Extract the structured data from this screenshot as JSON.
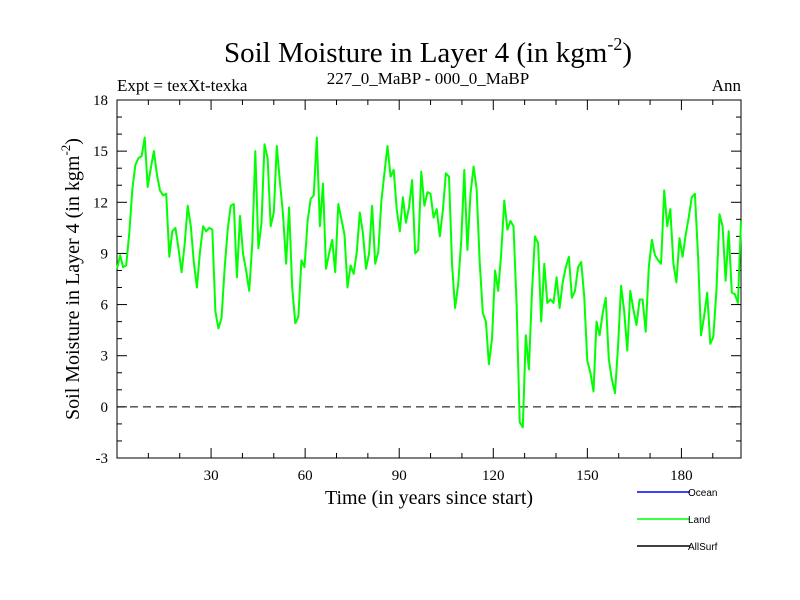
{
  "chart_data": {
    "type": "line",
    "title": "Soil Moisture in Layer 4 (in kgm",
    "title_sup": "-2",
    "title_close": ")",
    "subtitle_left": "Expt = texXt-texka",
    "subtitle_center": "227_0_MaBP - 000_0_MaBP",
    "subtitle_right": "Ann",
    "xlabel": "Time (in years since start)",
    "ylabel": "Soil Moisture in Layer 4 (in kgm",
    "ylabel_sup": "-2",
    "ylabel_close": ")",
    "xlim": [
      0,
      199
    ],
    "ylim": [
      -3,
      18
    ],
    "x_ticks": [
      30,
      60,
      90,
      120,
      150,
      180
    ],
    "y_ticks": [
      -3,
      0,
      3,
      6,
      9,
      12,
      15,
      18
    ],
    "reference_line": 0,
    "legend": [
      {
        "name": "Ocean",
        "color": "#0000ff"
      },
      {
        "name": "Land",
        "color": "#00ff00"
      },
      {
        "name": "AllSurf",
        "color": "#000000"
      }
    ],
    "series": [
      {
        "name": "Land",
        "color": "#00ff00",
        "values": [
          8.1,
          8.9,
          8.2,
          8.3,
          10.2,
          12.8,
          14.2,
          14.6,
          14.7,
          15.8,
          12.9,
          14.0,
          15.0,
          13.6,
          12.7,
          12.4,
          12.5,
          8.8,
          10.3,
          10.5,
          9.3,
          7.9,
          9.5,
          11.8,
          10.6,
          8.5,
          7.0,
          9.1,
          10.6,
          10.3,
          10.5,
          10.4,
          5.6,
          4.6,
          5.2,
          8.1,
          10.4,
          11.8,
          11.9,
          7.6,
          11.2,
          9.0,
          8.0,
          6.8,
          9.6,
          15.0,
          9.3,
          10.8,
          15.4,
          14.6,
          10.6,
          11.4,
          15.3,
          13.2,
          11.3,
          8.4,
          11.7,
          7.0,
          4.9,
          5.3,
          8.6,
          8.2,
          10.9,
          12.2,
          12.4,
          15.8,
          10.6,
          13.1,
          8.1,
          9.0,
          9.8,
          7.9,
          11.9,
          11.0,
          10.1,
          7.0,
          8.3,
          7.8,
          9.1,
          11.4,
          10.2,
          8.1,
          9.0,
          11.8,
          8.4,
          9.1,
          12.1,
          13.7,
          15.3,
          13.5,
          13.9,
          11.6,
          10.3,
          12.3,
          10.8,
          11.7,
          13.3,
          9.0,
          9.2,
          13.8,
          11.8,
          12.6,
          12.5,
          11.1,
          11.6,
          10.0,
          11.5,
          13.7,
          13.5,
          8.3,
          5.8,
          7.2,
          9.8,
          13.9,
          9.2,
          12.5,
          14.1,
          12.8,
          8.5,
          5.5,
          5.0,
          2.5,
          4.0,
          8.0,
          6.8,
          9.0,
          12.1,
          10.4,
          10.9,
          10.6,
          6.0,
          -0.9,
          -1.2,
          4.2,
          2.2,
          6.8,
          10.0,
          9.6,
          5.0,
          8.4,
          6.1,
          6.3,
          6.1,
          7.6,
          5.8,
          7.3,
          8.2,
          8.8,
          6.4,
          6.8,
          8.2,
          8.5,
          6.5,
          2.7,
          2.0,
          0.9,
          5.0,
          4.2,
          5.5,
          6.4,
          2.8,
          1.6,
          0.8,
          3.5,
          7.1,
          5.6,
          3.3,
          6.8,
          5.7,
          4.8,
          6.3,
          6.3,
          4.4,
          8.2,
          9.8,
          8.9,
          8.6,
          8.4,
          12.7,
          10.6,
          11.6,
          8.4,
          7.3,
          9.9,
          8.8,
          10.1,
          11.1,
          12.3,
          12.5,
          8.9,
          4.2,
          5.3,
          6.7,
          3.7,
          4.1,
          6.8,
          11.3,
          10.6,
          7.4,
          10.3,
          6.7,
          6.6,
          6.1,
          10.9
        ]
      }
    ]
  }
}
